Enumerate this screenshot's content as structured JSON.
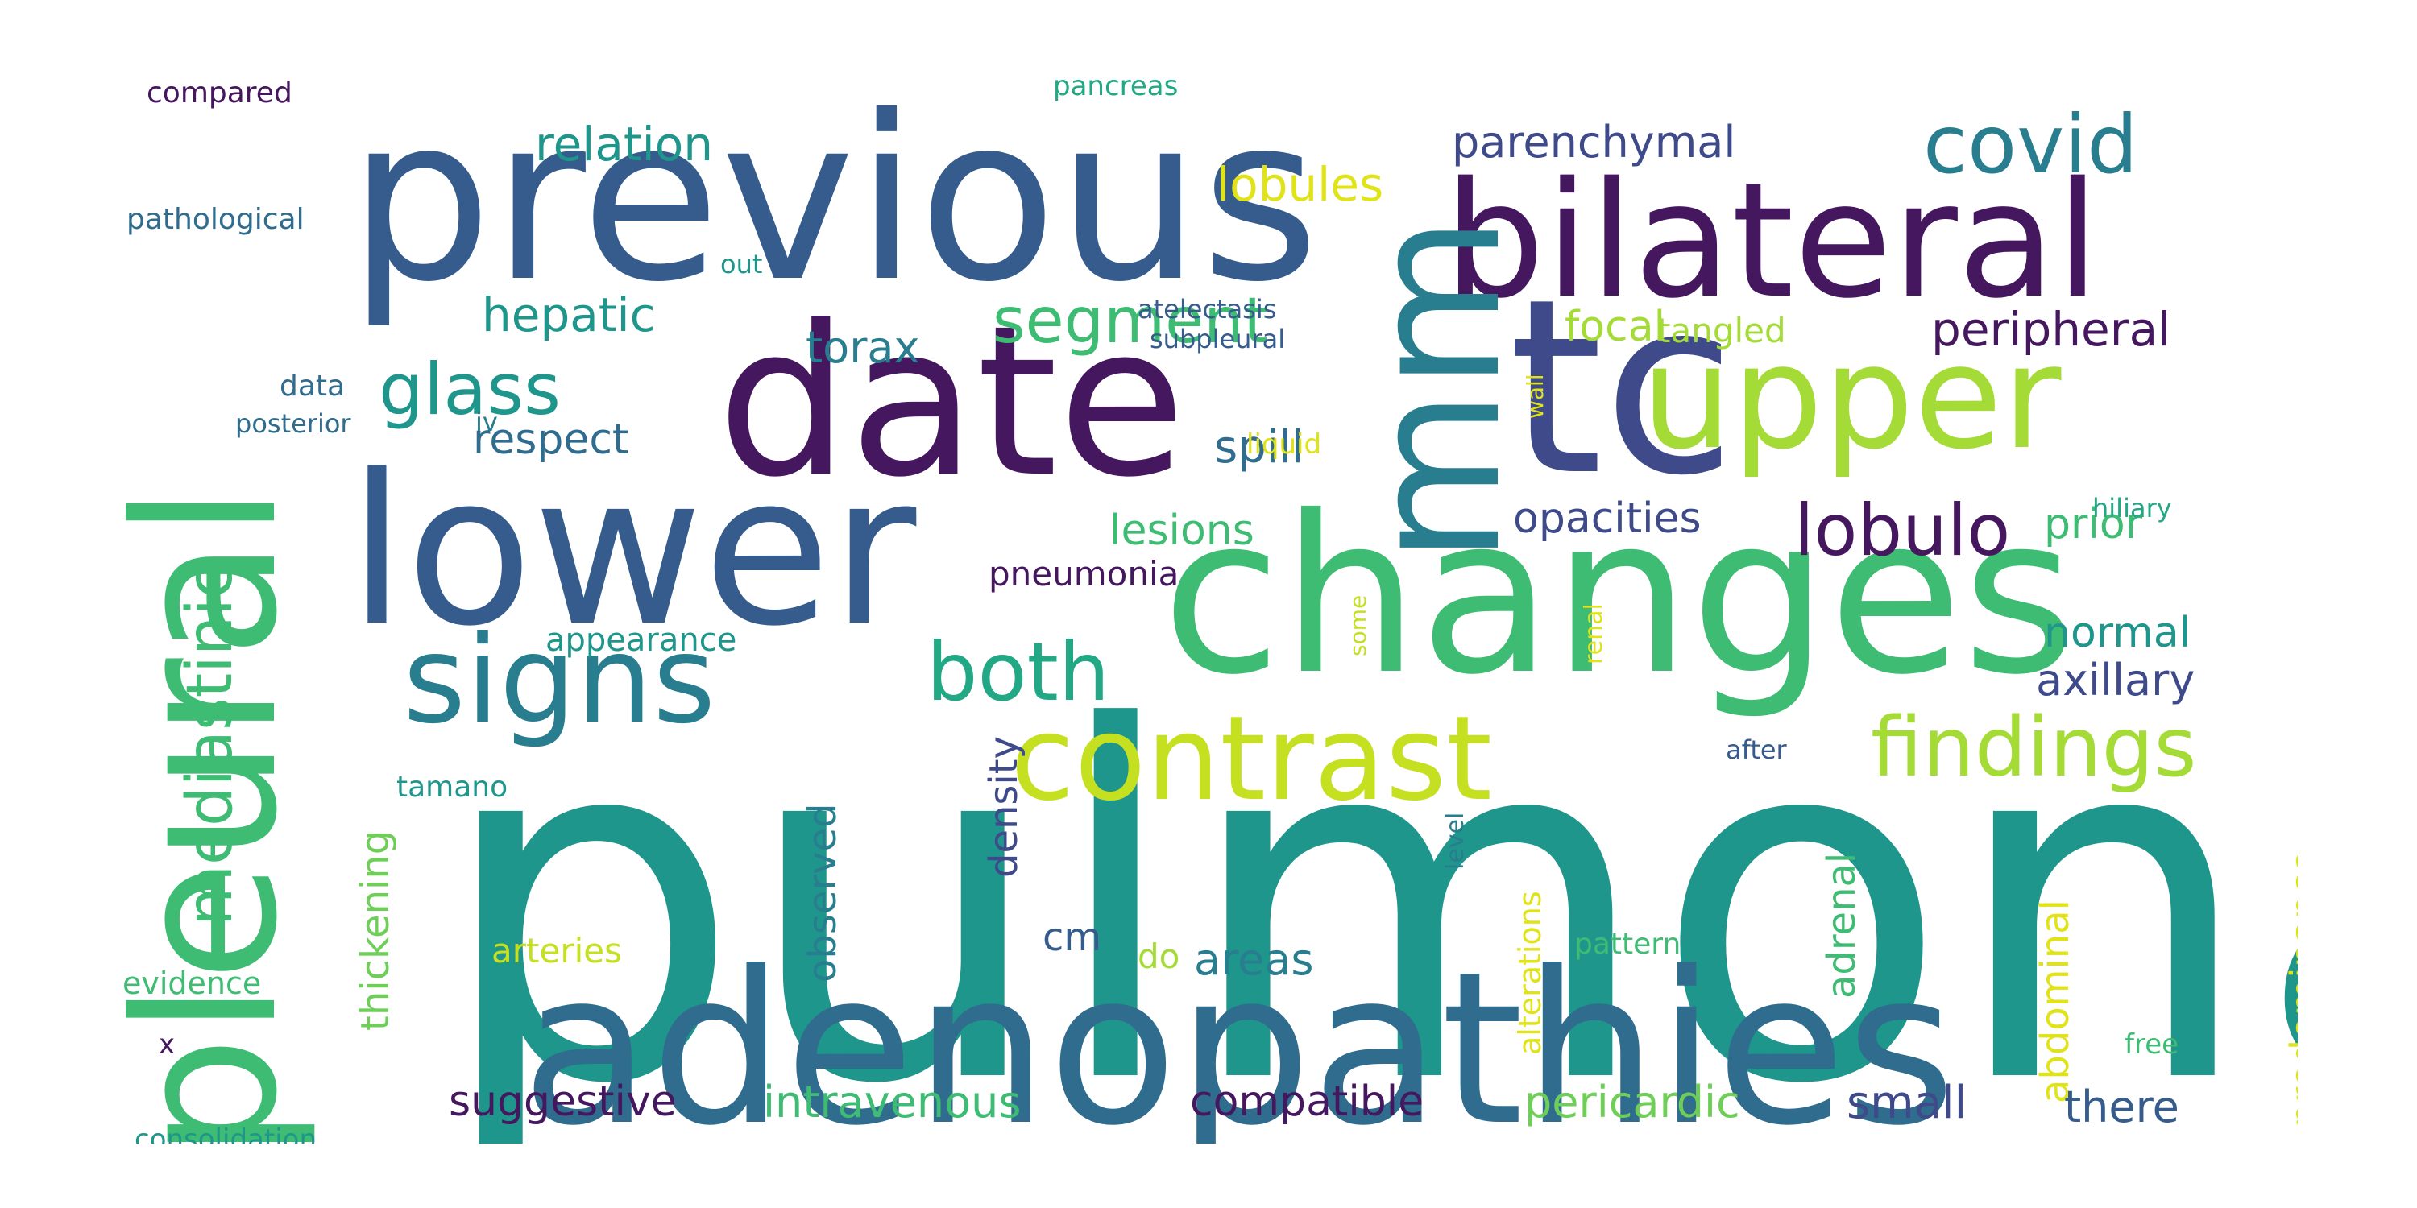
{
  "palette": {
    "dark_purple": "#45175f",
    "indigo": "#3e4a89",
    "blue": "#365c8d",
    "steel_blue": "#2f6c8e",
    "teal_blue": "#287d8e",
    "teal": "#1f968b",
    "teal_green": "#22a884",
    "green": "#3fbc73",
    "light_green": "#6ece58",
    "lime": "#a5db36",
    "yellow_green": "#c5e021",
    "yellow": "#dfe318"
  },
  "words": [
    {
      "text": "pulmonary",
      "color": "#1f968b",
      "rotated": false
    },
    {
      "text": "adenopathies",
      "color": "#2f6c8e",
      "rotated": false
    },
    {
      "text": "previous",
      "color": "#365c8d",
      "rotated": false
    },
    {
      "text": "changes",
      "color": "#3fbc73",
      "rotated": false
    },
    {
      "text": "date",
      "color": "#45175f",
      "rotated": false
    },
    {
      "text": "lower",
      "color": "#365c8d",
      "rotated": false
    },
    {
      "text": "tc",
      "color": "#3e4a89",
      "rotated": false
    },
    {
      "text": "bilateral",
      "color": "#45175f",
      "rotated": false
    },
    {
      "text": "pleural",
      "color": "#3fbc73",
      "rotated": true
    },
    {
      "text": "mm",
      "color": "#287d8e",
      "rotated": true
    },
    {
      "text": "upper",
      "color": "#a5db36",
      "rotated": false
    },
    {
      "text": "signs",
      "color": "#287d8e",
      "rotated": false
    },
    {
      "text": "contrast",
      "color": "#c5e021",
      "rotated": false
    },
    {
      "text": "both",
      "color": "#22a884",
      "rotated": false
    },
    {
      "text": "findings",
      "color": "#a5db36",
      "rotated": false
    },
    {
      "text": "covid",
      "color": "#287d8e",
      "rotated": false
    },
    {
      "text": "lobulo",
      "color": "#45175f",
      "rotated": false
    },
    {
      "text": "glass",
      "color": "#1f968b",
      "rotated": false
    },
    {
      "text": "segment",
      "color": "#3fbc73",
      "rotated": false
    },
    {
      "text": "mediastinic",
      "color": "#3fbc73",
      "rotated": true
    },
    {
      "text": "relation",
      "color": "#1f968b",
      "rotated": false
    },
    {
      "text": "lobules",
      "color": "#dfe318",
      "rotated": false
    },
    {
      "text": "parenchymal",
      "color": "#3e4a89",
      "rotated": false
    },
    {
      "text": "hepatic",
      "color": "#1f968b",
      "rotated": false
    },
    {
      "text": "torax",
      "color": "#287d8e",
      "rotated": false
    },
    {
      "text": "focal",
      "color": "#a5db36",
      "rotated": false
    },
    {
      "text": "tangled",
      "color": "#a5db36",
      "rotated": false
    },
    {
      "text": "peripheral",
      "color": "#45175f",
      "rotated": false
    },
    {
      "text": "respect",
      "color": "#2f6c8e",
      "rotated": false
    },
    {
      "text": "spill",
      "color": "#2f6c8e",
      "rotated": false
    },
    {
      "text": "opacities",
      "color": "#3e4a89",
      "rotated": false
    },
    {
      "text": "prior",
      "color": "#3fbc73",
      "rotated": false
    },
    {
      "text": "lesions",
      "color": "#3fbc73",
      "rotated": false
    },
    {
      "text": "pneumonia",
      "color": "#45175f",
      "rotated": false
    },
    {
      "text": "normal",
      "color": "#1f968b",
      "rotated": false
    },
    {
      "text": "axillary",
      "color": "#3e4a89",
      "rotated": false
    },
    {
      "text": "appearance",
      "color": "#1f968b",
      "rotated": false
    },
    {
      "text": "thickening",
      "color": "#6ece58",
      "rotated": true
    },
    {
      "text": "observed",
      "color": "#287d8e",
      "rotated": true
    },
    {
      "text": "density",
      "color": "#3e4a89",
      "rotated": true
    },
    {
      "text": "tamano",
      "color": "#1f968b",
      "rotated": false
    },
    {
      "text": "adrenal",
      "color": "#3fbc73",
      "rotated": true
    },
    {
      "text": "abdominal",
      "color": "#dfe318",
      "rotated": true
    },
    {
      "text": "predominance",
      "color": "#dfe318",
      "rotated": true
    },
    {
      "text": "cm",
      "color": "#365c8d",
      "rotated": false
    },
    {
      "text": "areas",
      "color": "#287d8e",
      "rotated": false
    },
    {
      "text": "arteries",
      "color": "#c5e021",
      "rotated": false
    },
    {
      "text": "evidence",
      "color": "#3fbc73",
      "rotated": false
    },
    {
      "text": "do",
      "color": "#a5db36",
      "rotated": false
    },
    {
      "text": "pattern",
      "color": "#3fbc73",
      "rotated": false
    },
    {
      "text": "alterations",
      "color": "#dfe318",
      "rotated": true
    },
    {
      "text": "level",
      "color": "#287d8e",
      "rotated": true
    },
    {
      "text": "suggestive",
      "color": "#45175f",
      "rotated": false
    },
    {
      "text": "intravenous",
      "color": "#3fbc73",
      "rotated": false
    },
    {
      "text": "compatible",
      "color": "#45175f",
      "rotated": false
    },
    {
      "text": "pericardic",
      "color": "#6ece58",
      "rotated": false
    },
    {
      "text": "small",
      "color": "#3e4a89",
      "rotated": false
    },
    {
      "text": "there",
      "color": "#365c8d",
      "rotated": false
    },
    {
      "text": "consolidation",
      "color": "#1f968b",
      "rotated": false
    },
    {
      "text": "compared",
      "color": "#45175f",
      "rotated": false
    },
    {
      "text": "pathological",
      "color": "#2f6c8e",
      "rotated": false
    },
    {
      "text": "data",
      "color": "#2f6c8e",
      "rotated": false
    },
    {
      "text": "posterior",
      "color": "#2f6c8e",
      "rotated": false
    },
    {
      "text": "iv",
      "color": "#287d8e",
      "rotated": false
    },
    {
      "text": "out",
      "color": "#1f968b",
      "rotated": false
    },
    {
      "text": "atelectasis",
      "color": "#365c8d",
      "rotated": false
    },
    {
      "text": "subpleural",
      "color": "#365c8d",
      "rotated": false
    },
    {
      "text": "pancreas",
      "color": "#22a884",
      "rotated": false
    },
    {
      "text": "liquid",
      "color": "#dfe318",
      "rotated": false
    },
    {
      "text": "wall",
      "color": "#dfe318",
      "rotated": true
    },
    {
      "text": "hiliary",
      "color": "#22a884",
      "rotated": false
    },
    {
      "text": "renal",
      "color": "#dfe318",
      "rotated": true
    },
    {
      "text": "some",
      "color": "#c5e021",
      "rotated": true
    },
    {
      "text": "after",
      "color": "#365c8d",
      "rotated": false
    },
    {
      "text": "free",
      "color": "#3fbc73",
      "rotated": false
    },
    {
      "text": "x",
      "color": "#45175f",
      "rotated": false
    }
  ]
}
